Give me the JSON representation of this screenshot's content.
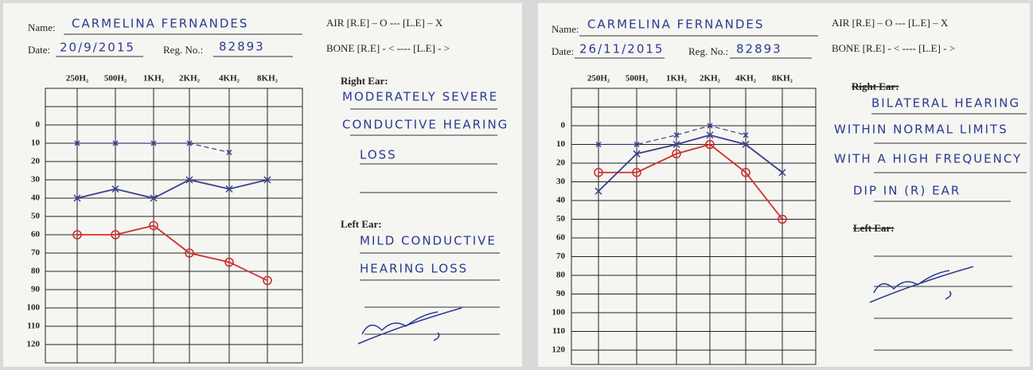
{
  "chart_data": [
    {
      "type": "line",
      "name_label": "Name:",
      "name": "CARMELINA FERNANDES",
      "date_label": "Date:",
      "date": "20/9/2015",
      "reg_label": "Reg. No.:",
      "reg_no": "82893",
      "legend_air": "AIR [R.E] – O --- [L.E] – X",
      "legend_bone": "BONE [R.E] - < ---- [L.E] - >",
      "right_ear_label": "Right Ear:",
      "right_ear_notes": [
        "MODERATELY SEVERE",
        "CONDUCTIVE HEARING",
        "LOSS"
      ],
      "left_ear_label": "Left Ear:",
      "left_ear_notes": [
        "MILD CONDUCTIVE",
        "HEARING LOSS"
      ],
      "categories": [
        "250H₂",
        "500H₂",
        "1KH₂",
        "2KH₂",
        "4KH₂",
        "8KH₂"
      ],
      "ylim": [
        -20,
        130
      ],
      "yticks": [
        0,
        10,
        20,
        30,
        40,
        50,
        60,
        70,
        80,
        90,
        100,
        110,
        120
      ],
      "inverted": true,
      "grid": true,
      "series": [
        {
          "color": "#d12f2f",
          "marker": "circle",
          "dashed": false,
          "values": [
            60,
            60,
            55,
            70,
            75,
            85
          ]
        },
        {
          "color": "#3a3f8f",
          "marker": "cross",
          "dashed": false,
          "values": [
            40,
            35,
            40,
            30,
            35,
            30
          ]
        },
        {
          "color": "#3a3f8f",
          "marker": "cross",
          "dashed": true,
          "values": [
            10,
            10,
            10,
            10,
            15,
            null
          ]
        }
      ]
    },
    {
      "type": "line",
      "name_label": "Name:",
      "name": "CARMELINA FERNANDES",
      "date_label": "Date:",
      "date": "26/11/2015",
      "reg_label": "Reg. No.:",
      "reg_no": "82893",
      "legend_air": "AIR [R.E] – O --- [L.E] – X",
      "legend_bone": "BONE [R.E] - < ---- [L.E] - >",
      "right_ear_label": "Right Ear:",
      "right_ear_notes": [
        "BILATERAL HEARING",
        "WITHIN NORMAL LIMITS",
        "WITH A HIGH FREQUENCY",
        "DIP IN (R) EAR"
      ],
      "left_ear_label": "Left Ear:",
      "left_ear_notes": [],
      "categories": [
        "250H₂",
        "500H₂",
        "1KH₂",
        "2KH₂",
        "4KH₂",
        "8KH₂"
      ],
      "ylim": [
        -20,
        130
      ],
      "yticks": [
        0,
        10,
        20,
        30,
        40,
        50,
        60,
        70,
        80,
        90,
        100,
        110,
        120
      ],
      "inverted": true,
      "grid": true,
      "series": [
        {
          "color": "#d12f2f",
          "marker": "circle",
          "dashed": false,
          "values": [
            25,
            25,
            15,
            10,
            25,
            50
          ]
        },
        {
          "color": "#3a3f8f",
          "marker": "cross",
          "dashed": false,
          "values": [
            35,
            15,
            10,
            5,
            10,
            25
          ]
        },
        {
          "color": "#3a3f8f",
          "marker": "cross",
          "dashed": true,
          "values": [
            10,
            10,
            5,
            0,
            5,
            null
          ]
        }
      ]
    }
  ]
}
